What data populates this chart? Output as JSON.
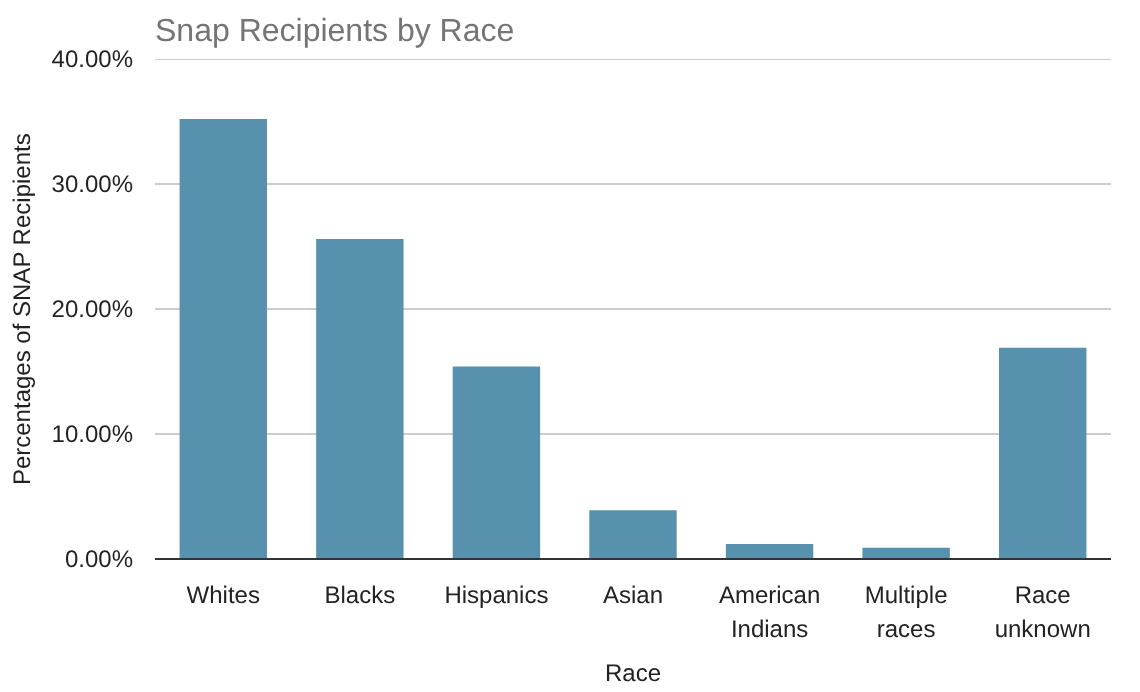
{
  "chart_data": {
    "type": "bar",
    "title": "Snap Recipients by Race",
    "xlabel": "Race",
    "ylabel": "Percentages of SNAP Recipients",
    "categories": [
      "Whites",
      "Blacks",
      "Hispanics",
      "Asian",
      "American Indians",
      "Multiple races",
      "Race unknown"
    ],
    "values": [
      35.2,
      25.6,
      15.4,
      3.9,
      1.2,
      0.9,
      16.9
    ],
    "color": "#5891ad",
    "ylim": [
      0,
      40
    ],
    "yticks": [
      {
        "value": 0,
        "label": "0.00%"
      },
      {
        "value": 10,
        "label": "10.00%"
      },
      {
        "value": 20,
        "label": "20.00%"
      },
      {
        "value": 30,
        "label": "30.00%"
      },
      {
        "value": 40,
        "label": "40.00%"
      }
    ],
    "grid": "y"
  }
}
